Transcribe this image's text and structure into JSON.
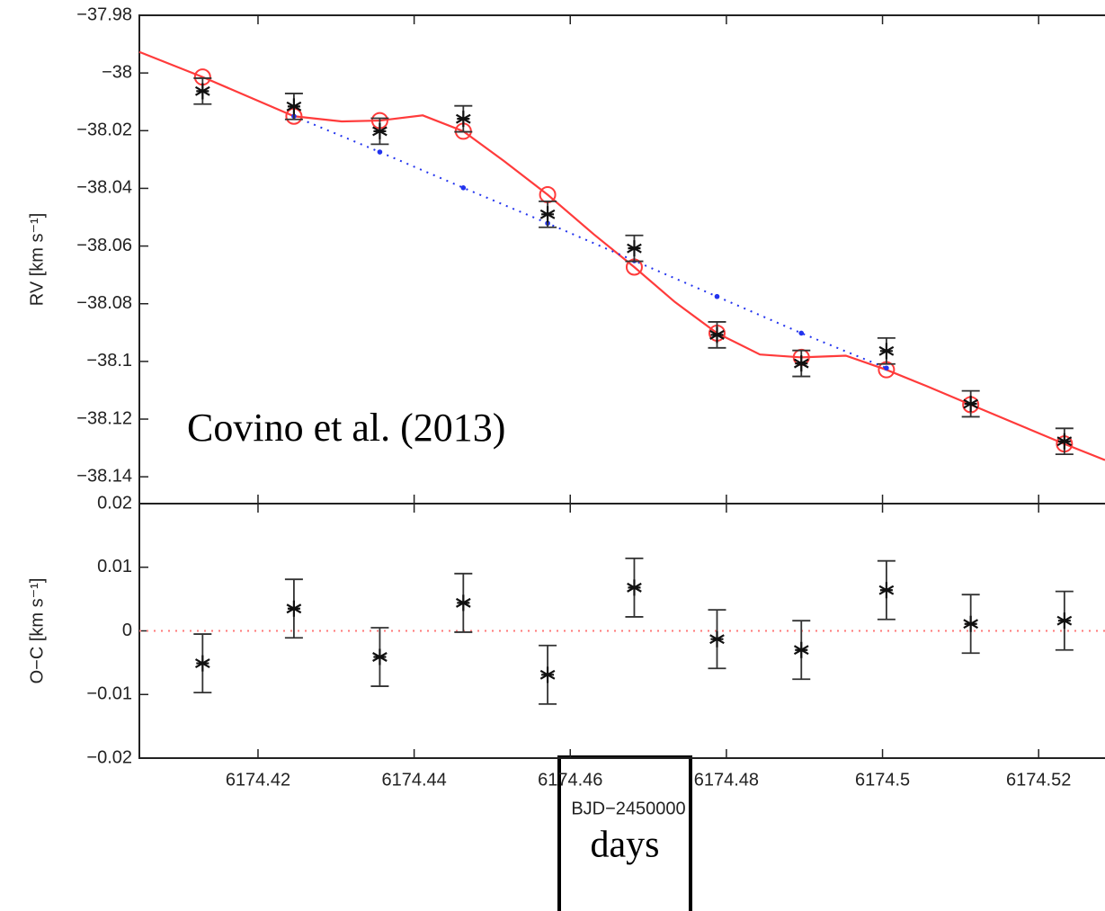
{
  "chart_data": [
    {
      "type": "errorbar",
      "ylabel": "RV [km s⁻¹]",
      "annotation": "Covino et al. (2013)",
      "xlim": [
        6174.4048,
        6174.5285
      ],
      "xticks": [
        6174.42,
        6174.44,
        6174.46,
        6174.48,
        6174.5,
        6174.52
      ],
      "ylim": [
        -38.1493,
        -37.98
      ],
      "yticks": [
        {
          "value": -37.98,
          "label": "−37.98"
        },
        {
          "value": -38,
          "label": "−38"
        },
        {
          "value": -38.02,
          "label": "−38.02"
        },
        {
          "value": -38.04,
          "label": "−38.04"
        },
        {
          "value": -38.06,
          "label": "−38.06"
        },
        {
          "value": -38.08,
          "label": "−38.08"
        },
        {
          "value": -38.1,
          "label": "−38.1"
        },
        {
          "value": -38.12,
          "label": "−38.12"
        },
        {
          "value": -38.14,
          "label": "−38.14"
        }
      ],
      "series": [
        {
          "color": "#ff3b3b",
          "marker": "none",
          "linestyle": "solid",
          "x": [
            6174.4048,
            6174.4129,
            6174.4246,
            6174.4307,
            6174.4356,
            6174.4411,
            6174.4463,
            6174.4515,
            6174.4571,
            6174.463,
            6174.4682,
            6174.4734,
            6174.4788,
            6174.4843,
            6174.4896,
            6174.4953,
            6174.5005,
            6174.5056,
            6174.5113,
            6174.5233,
            6174.5285
          ],
          "values": [
            -37.9927,
            -38.0014,
            -38.015,
            -38.0168,
            -38.0165,
            -38.0147,
            -38.0202,
            -38.0305,
            -38.0422,
            -38.0559,
            -38.0673,
            -38.0794,
            -38.0902,
            -38.0976,
            -38.0986,
            -38.098,
            -38.1029,
            -38.1085,
            -38.115,
            -38.1286,
            -38.1342
          ]
        },
        {
          "color": "#2233ee",
          "marker": "dot",
          "linestyle": "dotted",
          "x": [
            6174.4246,
            6174.4356,
            6174.4463,
            6174.4571,
            6174.4682,
            6174.4788,
            6174.4896,
            6174.5005
          ],
          "values": [
            -38.015,
            -38.0274,
            -38.0398,
            -38.0521,
            -38.0651,
            -38.0775,
            -38.0902,
            -38.1023
          ]
        },
        {
          "color": "#ff3b3b",
          "marker": "circle",
          "linestyle": "none",
          "x": [
            6174.4129,
            6174.4246,
            6174.4356,
            6174.4463,
            6174.4571,
            6174.4682,
            6174.4788,
            6174.4896,
            6174.5005,
            6174.5113,
            6174.5233
          ],
          "values": [
            -38.0014,
            -38.015,
            -38.0165,
            -38.0202,
            -38.0422,
            -38.0673,
            -38.0902,
            -38.0986,
            -38.1029,
            -38.115,
            -38.1286
          ]
        },
        {
          "color": "#111111",
          "marker": "asterisk",
          "linestyle": "none",
          "x": [
            6174.4129,
            6174.4246,
            6174.4356,
            6174.4463,
            6174.4571,
            6174.4682,
            6174.4788,
            6174.4896,
            6174.5005,
            6174.5113,
            6174.5233
          ],
          "values": [
            -38.0063,
            -38.0116,
            -38.0202,
            -38.0159,
            -38.049,
            -38.0608,
            -38.0908,
            -38.1007,
            -38.0964,
            -38.1147,
            -38.1277
          ],
          "errors": [
            0.0045,
            0.0045,
            0.0045,
            0.0045,
            0.0045,
            0.0045,
            0.0045,
            0.0045,
            0.0045,
            0.0045,
            0.0045
          ]
        }
      ]
    },
    {
      "type": "errorbar",
      "ylabel": "O−C [km s⁻¹]",
      "xlabel": "BJD−2450000",
      "boxed_label": "days",
      "xlim": [
        6174.4048,
        6174.5285
      ],
      "xticks": [
        6174.42,
        6174.44,
        6174.46,
        6174.48,
        6174.5,
        6174.52
      ],
      "ylim": [
        -0.02,
        0.02
      ],
      "yticks": [
        {
          "value": -0.02,
          "label": "−0.02"
        },
        {
          "value": -0.01,
          "label": "−0.01"
        },
        0,
        0.01,
        0.02
      ],
      "zero_line": 0,
      "zero_line_color": "#ff7777",
      "series": [
        {
          "color": "#111111",
          "marker": "asterisk",
          "linestyle": "none",
          "x": [
            6174.4129,
            6174.4246,
            6174.4356,
            6174.4463,
            6174.4571,
            6174.4682,
            6174.4788,
            6174.4896,
            6174.5005,
            6174.5113,
            6174.5233
          ],
          "values": [
            -0.0051,
            0.0035,
            -0.0041,
            0.0044,
            -0.0069,
            0.0068,
            -0.0013,
            -0.003,
            0.0064,
            0.0011,
            0.0016
          ],
          "errors": [
            0.0046,
            0.0046,
            0.0046,
            0.0046,
            0.0046,
            0.0046,
            0.0046,
            0.0046,
            0.0046,
            0.0046,
            0.0046
          ]
        }
      ]
    }
  ]
}
